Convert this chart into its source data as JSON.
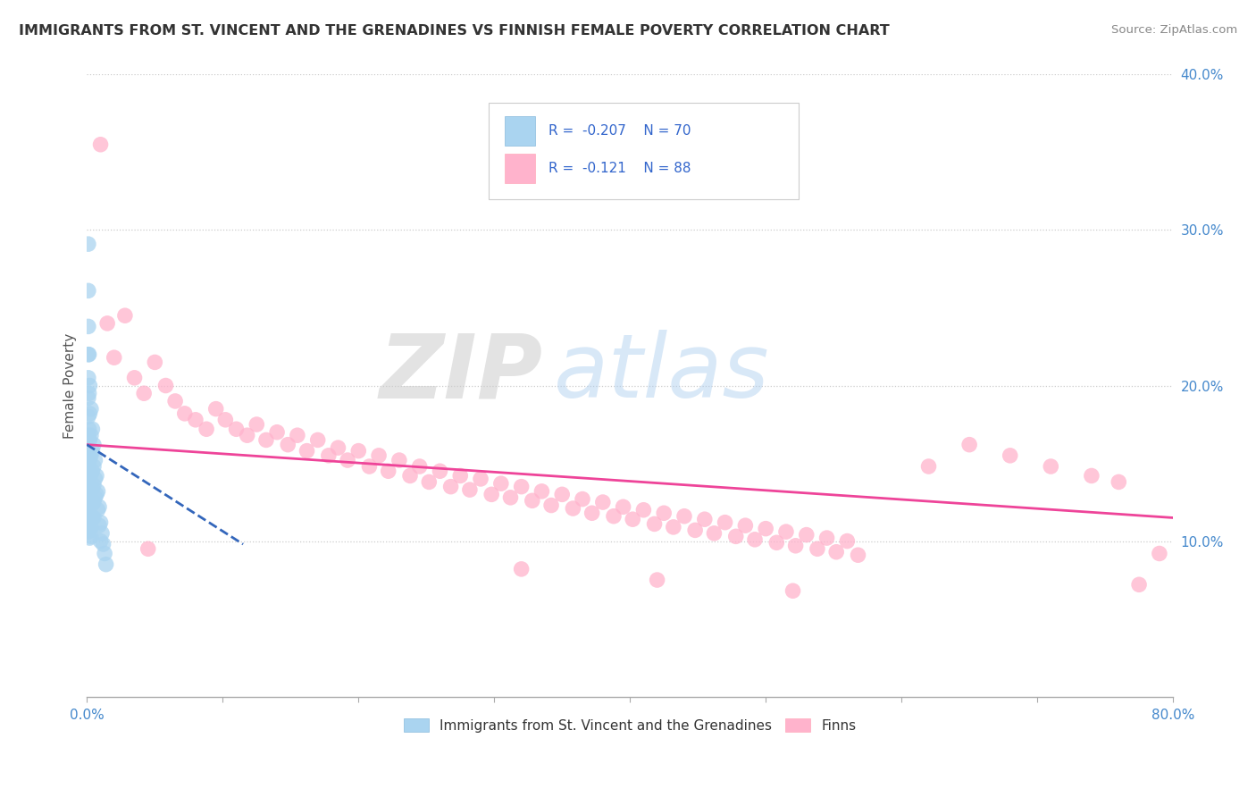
{
  "title": "IMMIGRANTS FROM ST. VINCENT AND THE GRENADINES VS FINNISH FEMALE POVERTY CORRELATION CHART",
  "source": "Source: ZipAtlas.com",
  "ylabel": "Female Poverty",
  "legend_label_blue": "Immigrants from St. Vincent and the Grenadines",
  "legend_label_pink": "Finns",
  "R_blue": -0.207,
  "N_blue": 70,
  "R_pink": -0.121,
  "N_pink": 88,
  "xlim": [
    0.0,
    0.8
  ],
  "ylim": [
    0.0,
    0.4
  ],
  "yticks_right": [
    0.1,
    0.2,
    0.3,
    0.4
  ],
  "ytick_labels_right": [
    "10.0%",
    "20.0%",
    "30.0%",
    "40.0%"
  ],
  "color_blue": "#aad4f0",
  "color_pink": "#ffb3cc",
  "color_blue_line": "#3366bb",
  "color_pink_line": "#ee4499",
  "background_color": "#ffffff",
  "watermark_zip": "ZIP",
  "watermark_atlas": "atlas",
  "blue_x": [
    0.001,
    0.001,
    0.001,
    0.001,
    0.001,
    0.001,
    0.001,
    0.001,
    0.001,
    0.001,
    0.001,
    0.001,
    0.001,
    0.001,
    0.001,
    0.001,
    0.0015,
    0.0015,
    0.0015,
    0.0015,
    0.0015,
    0.0015,
    0.0015,
    0.0015,
    0.002,
    0.002,
    0.002,
    0.002,
    0.002,
    0.002,
    0.002,
    0.002,
    0.002,
    0.002,
    0.002,
    0.003,
    0.003,
    0.003,
    0.003,
    0.003,
    0.003,
    0.003,
    0.003,
    0.003,
    0.004,
    0.004,
    0.004,
    0.004,
    0.004,
    0.004,
    0.005,
    0.005,
    0.005,
    0.005,
    0.005,
    0.006,
    0.006,
    0.006,
    0.007,
    0.007,
    0.008,
    0.008,
    0.009,
    0.009,
    0.01,
    0.01,
    0.011,
    0.012,
    0.013,
    0.014
  ],
  "blue_y": [
    0.291,
    0.261,
    0.238,
    0.22,
    0.205,
    0.192,
    0.18,
    0.168,
    0.158,
    0.148,
    0.14,
    0.132,
    0.125,
    0.118,
    0.112,
    0.106,
    0.22,
    0.195,
    0.172,
    0.155,
    0.14,
    0.128,
    0.118,
    0.108,
    0.2,
    0.182,
    0.165,
    0.152,
    0.142,
    0.133,
    0.125,
    0.118,
    0.112,
    0.107,
    0.102,
    0.185,
    0.168,
    0.155,
    0.143,
    0.133,
    0.124,
    0.116,
    0.109,
    0.103,
    0.172,
    0.158,
    0.145,
    0.134,
    0.124,
    0.115,
    0.162,
    0.148,
    0.136,
    0.125,
    0.115,
    0.152,
    0.14,
    0.128,
    0.142,
    0.13,
    0.132,
    0.12,
    0.122,
    0.11,
    0.112,
    0.1,
    0.105,
    0.098,
    0.092,
    0.085
  ],
  "pink_x": [
    0.01,
    0.015,
    0.02,
    0.028,
    0.035,
    0.042,
    0.05,
    0.058,
    0.065,
    0.072,
    0.08,
    0.088,
    0.095,
    0.102,
    0.11,
    0.118,
    0.125,
    0.132,
    0.14,
    0.148,
    0.155,
    0.162,
    0.17,
    0.178,
    0.185,
    0.192,
    0.2,
    0.208,
    0.215,
    0.222,
    0.23,
    0.238,
    0.245,
    0.252,
    0.26,
    0.268,
    0.275,
    0.282,
    0.29,
    0.298,
    0.305,
    0.312,
    0.32,
    0.328,
    0.335,
    0.342,
    0.35,
    0.358,
    0.365,
    0.372,
    0.38,
    0.388,
    0.395,
    0.402,
    0.41,
    0.418,
    0.425,
    0.432,
    0.44,
    0.448,
    0.455,
    0.462,
    0.47,
    0.478,
    0.485,
    0.492,
    0.5,
    0.508,
    0.515,
    0.522,
    0.53,
    0.538,
    0.545,
    0.552,
    0.56,
    0.568,
    0.62,
    0.65,
    0.68,
    0.71,
    0.74,
    0.76,
    0.775,
    0.79,
    0.045,
    0.32,
    0.42,
    0.52
  ],
  "pink_y": [
    0.355,
    0.24,
    0.218,
    0.245,
    0.205,
    0.195,
    0.215,
    0.2,
    0.19,
    0.182,
    0.178,
    0.172,
    0.185,
    0.178,
    0.172,
    0.168,
    0.175,
    0.165,
    0.17,
    0.162,
    0.168,
    0.158,
    0.165,
    0.155,
    0.16,
    0.152,
    0.158,
    0.148,
    0.155,
    0.145,
    0.152,
    0.142,
    0.148,
    0.138,
    0.145,
    0.135,
    0.142,
    0.133,
    0.14,
    0.13,
    0.137,
    0.128,
    0.135,
    0.126,
    0.132,
    0.123,
    0.13,
    0.121,
    0.127,
    0.118,
    0.125,
    0.116,
    0.122,
    0.114,
    0.12,
    0.111,
    0.118,
    0.109,
    0.116,
    0.107,
    0.114,
    0.105,
    0.112,
    0.103,
    0.11,
    0.101,
    0.108,
    0.099,
    0.106,
    0.097,
    0.104,
    0.095,
    0.102,
    0.093,
    0.1,
    0.091,
    0.148,
    0.162,
    0.155,
    0.148,
    0.142,
    0.138,
    0.072,
    0.092,
    0.095,
    0.082,
    0.075,
    0.068
  ],
  "pink_line_x": [
    0.0,
    0.8
  ],
  "pink_line_y": [
    0.162,
    0.115
  ],
  "blue_line_x": [
    0.0,
    0.115
  ],
  "blue_line_y": [
    0.162,
    0.098
  ]
}
